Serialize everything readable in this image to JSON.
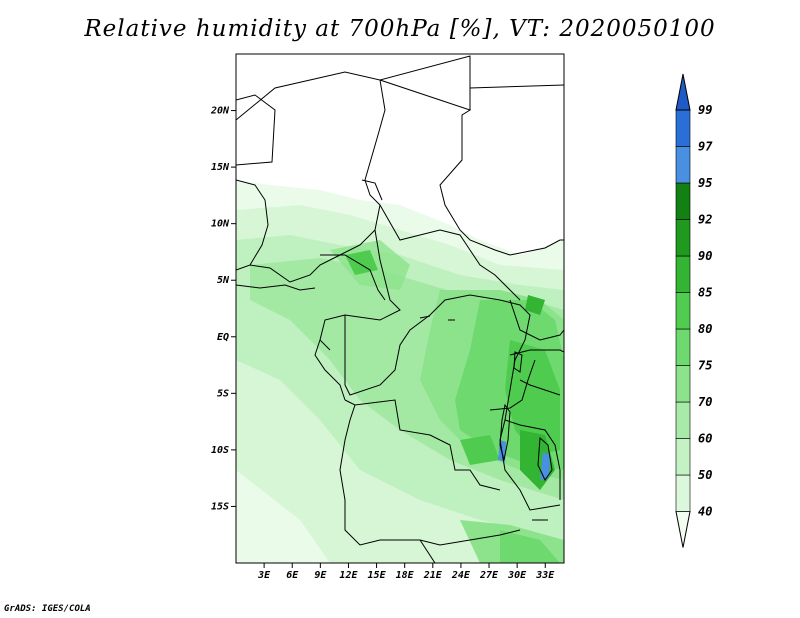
{
  "title": "Relative humidity at 700hPa [%], VT: 2020050100",
  "credit": "GrADS: IGES/COLA",
  "map": {
    "lon_range": [
      0,
      35
    ],
    "lat_range": [
      -20,
      25
    ],
    "y_ticks": [
      "20N",
      "15N",
      "10N",
      "5N",
      "EQ",
      "5S",
      "10S",
      "15S"
    ],
    "y_tick_values": [
      20,
      15,
      10,
      5,
      0,
      -5,
      -10,
      -15
    ],
    "x_ticks": [
      "3E",
      "6E",
      "9E",
      "12E",
      "15E",
      "18E",
      "21E",
      "24E",
      "27E",
      "30E",
      "33E"
    ],
    "x_tick_values": [
      3,
      6,
      9,
      12,
      15,
      18,
      21,
      24,
      27,
      30,
      33
    ]
  },
  "colorbar": {
    "levels": [
      "40",
      "50",
      "60",
      "70",
      "75",
      "80",
      "85",
      "90",
      "92",
      "95",
      "97",
      "99"
    ],
    "colors": [
      "#f0fdf0",
      "#dcf8dc",
      "#c4f2c4",
      "#a8eaa8",
      "#8ce38c",
      "#6ed96e",
      "#50cc50",
      "#33b533",
      "#1f9a1f",
      "#128012",
      "#4a90e2",
      "#2a6fd6",
      "#1e5bc6"
    ]
  }
}
